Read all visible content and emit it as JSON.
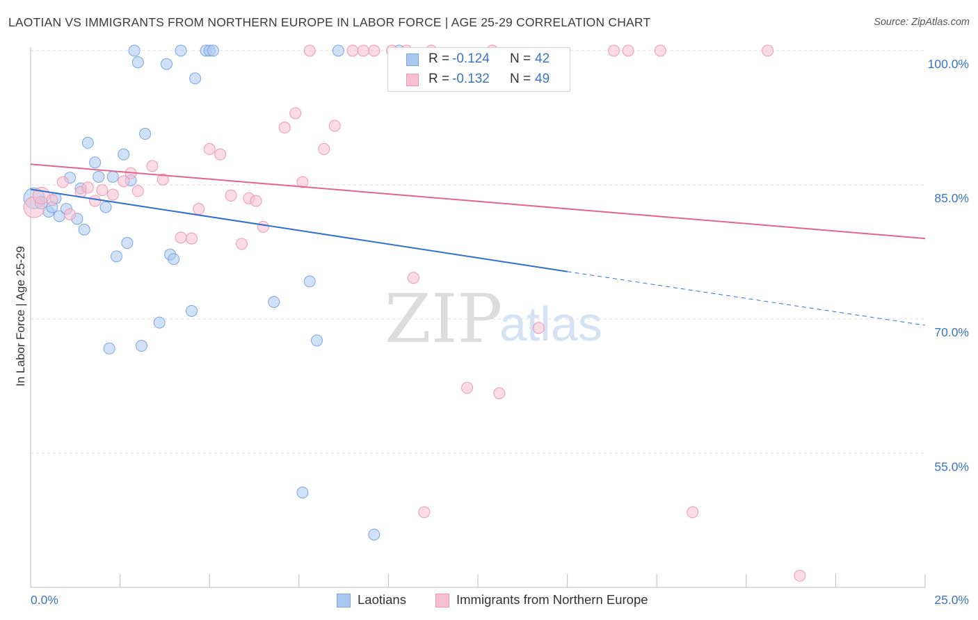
{
  "header": {
    "title": "LAOTIAN VS IMMIGRANTS FROM NORTHERN EUROPE IN LABOR FORCE | AGE 25-29 CORRELATION CHART",
    "source": "Source: ZipAtlas.com"
  },
  "watermark": {
    "zip": "ZIP",
    "atlas": "atlas"
  },
  "stats": [
    {
      "r_label": "R = ",
      "r_value": "-0.124",
      "n_label": "N = ",
      "n_value": "42",
      "color": "#8fb8ea"
    },
    {
      "r_label": "R = ",
      "r_value": "-0.132",
      "n_label": "N = ",
      "n_value": "49",
      "color": "#f4a9c0"
    }
  ],
  "legend": [
    {
      "label": "Laotians",
      "color": "#8fb8ea"
    },
    {
      "label": "Immigrants from Northern Europe",
      "color": "#f4a9c0"
    }
  ],
  "colors": {
    "blue_fill": "#a9c8f0",
    "blue_stroke": "#7aa6e0",
    "blue_line": "#2f6fcf",
    "pink_fill": "#f7bfd0",
    "pink_stroke": "#ee97b4",
    "pink_line": "#e2648f",
    "grid": "#dedede",
    "axis_text": "#3b74c7"
  },
  "chart_data": {
    "type": "scatter",
    "title": "LAOTIAN VS IMMIGRANTS FROM NORTHERN EUROPE IN LABOR FORCE | AGE 25-29 CORRELATION CHART",
    "xlabel": "",
    "ylabel": "In Labor Force | Age 25-29",
    "xlim": [
      0,
      25
    ],
    "ylim": [
      41.5,
      102.5
    ],
    "x_tick_labels": [
      {
        "value": 0,
        "label": "0.0%"
      },
      {
        "value": 25,
        "label": "25.0%"
      }
    ],
    "y_tick_labels": [
      {
        "value": 100,
        "label": "100.0%"
      },
      {
        "value": 85,
        "label": "85.0%"
      },
      {
        "value": 70,
        "label": "70.0%"
      },
      {
        "value": 55,
        "label": "55.0%"
      }
    ],
    "y_gridlines": [
      101.5,
      86.5,
      71.5,
      56.5
    ],
    "series": [
      {
        "name": "Laotians",
        "r": -0.124,
        "n": 42,
        "trend": {
          "x": [
            0,
            15.0
          ],
          "y": [
            86.0,
            76.8
          ],
          "dashed_to": [
            25,
            70.8
          ]
        },
        "points": [
          [
            0.1,
            85.0,
            14
          ],
          [
            0.3,
            84.5,
            8
          ],
          [
            0.5,
            83.5,
            7
          ],
          [
            0.6,
            84.0,
            7
          ],
          [
            0.7,
            85.0,
            7
          ],
          [
            0.8,
            83.0,
            7
          ],
          [
            1.0,
            83.8,
            7
          ],
          [
            1.1,
            87.3,
            7
          ],
          [
            1.3,
            82.7,
            7
          ],
          [
            1.4,
            86.1,
            7
          ],
          [
            1.5,
            81.5,
            7
          ],
          [
            1.6,
            91.2,
            7
          ],
          [
            1.8,
            89.0,
            7
          ],
          [
            1.9,
            87.4,
            7
          ],
          [
            2.1,
            84.0,
            7
          ],
          [
            2.3,
            87.4,
            7
          ],
          [
            2.4,
            78.5,
            7
          ],
          [
            2.6,
            89.9,
            7
          ],
          [
            2.7,
            80.0,
            7
          ],
          [
            2.8,
            87.0,
            7
          ],
          [
            2.9,
            101.5,
            7
          ],
          [
            3.1,
            68.5,
            7
          ],
          [
            3.2,
            92.2,
            7
          ],
          [
            3.6,
            71.1,
            7
          ],
          [
            3.8,
            100.0,
            7
          ],
          [
            3.9,
            78.7,
            7
          ],
          [
            4.0,
            78.2,
            7
          ],
          [
            4.2,
            101.5,
            7
          ],
          [
            4.5,
            72.4,
            7
          ],
          [
            4.6,
            98.4,
            7
          ],
          [
            4.9,
            101.5,
            7
          ],
          [
            5.0,
            101.5,
            7
          ],
          [
            5.1,
            101.5,
            7
          ],
          [
            6.8,
            73.4,
            7
          ],
          [
            7.6,
            52.1,
            7
          ],
          [
            7.8,
            75.7,
            7
          ],
          [
            8.0,
            69.1,
            7
          ],
          [
            8.6,
            101.5,
            7
          ],
          [
            9.6,
            47.4,
            7
          ],
          [
            10.3,
            101.5,
            7
          ],
          [
            2.2,
            68.2,
            7
          ],
          [
            3.0,
            100.2,
            7
          ]
        ]
      },
      {
        "name": "Immigrants from Northern Europe",
        "r": -0.132,
        "n": 49,
        "trend": {
          "x": [
            0,
            25
          ],
          "y": [
            88.8,
            80.5
          ]
        },
        "points": [
          [
            0.1,
            84.0,
            14
          ],
          [
            0.3,
            85.3,
            11
          ],
          [
            0.6,
            84.8,
            7
          ],
          [
            0.9,
            86.8,
            7
          ],
          [
            1.1,
            83.2,
            7
          ],
          [
            1.4,
            85.7,
            7
          ],
          [
            1.6,
            86.2,
            7
          ],
          [
            1.8,
            84.7,
            7
          ],
          [
            2.0,
            85.9,
            7
          ],
          [
            2.3,
            85.4,
            7
          ],
          [
            2.6,
            86.9,
            7
          ],
          [
            2.8,
            87.8,
            7
          ],
          [
            3.0,
            85.8,
            7
          ],
          [
            3.4,
            88.6,
            7
          ],
          [
            3.7,
            87.1,
            7
          ],
          [
            4.2,
            80.6,
            7
          ],
          [
            4.5,
            80.5,
            7
          ],
          [
            4.7,
            83.8,
            7
          ],
          [
            5.0,
            90.5,
            7
          ],
          [
            5.3,
            89.9,
            7
          ],
          [
            5.6,
            85.3,
            7
          ],
          [
            5.9,
            79.9,
            7
          ],
          [
            6.1,
            85.0,
            7
          ],
          [
            6.3,
            84.7,
            7
          ],
          [
            6.5,
            81.8,
            7
          ],
          [
            7.1,
            92.9,
            7
          ],
          [
            7.4,
            94.5,
            7
          ],
          [
            7.6,
            86.8,
            7
          ],
          [
            7.8,
            101.5,
            7
          ],
          [
            8.2,
            90.5,
            7
          ],
          [
            8.5,
            93.1,
            7
          ],
          [
            9.0,
            101.5,
            7
          ],
          [
            9.3,
            101.5,
            7
          ],
          [
            9.6,
            101.5,
            7
          ],
          [
            10.1,
            101.5,
            7
          ],
          [
            10.5,
            101.5,
            7
          ],
          [
            10.7,
            76.1,
            7
          ],
          [
            11.0,
            49.9,
            7
          ],
          [
            11.2,
            101.5,
            7
          ],
          [
            12.2,
            63.8,
            7
          ],
          [
            12.9,
            101.5,
            7
          ],
          [
            13.1,
            63.2,
            7
          ],
          [
            14.2,
            70.5,
            7
          ],
          [
            16.3,
            101.5,
            7
          ],
          [
            16.7,
            101.5,
            7
          ],
          [
            17.6,
            101.5,
            7
          ],
          [
            18.5,
            49.9,
            7
          ],
          [
            20.6,
            101.5,
            7
          ],
          [
            21.5,
            42.8,
            7
          ]
        ]
      }
    ]
  }
}
